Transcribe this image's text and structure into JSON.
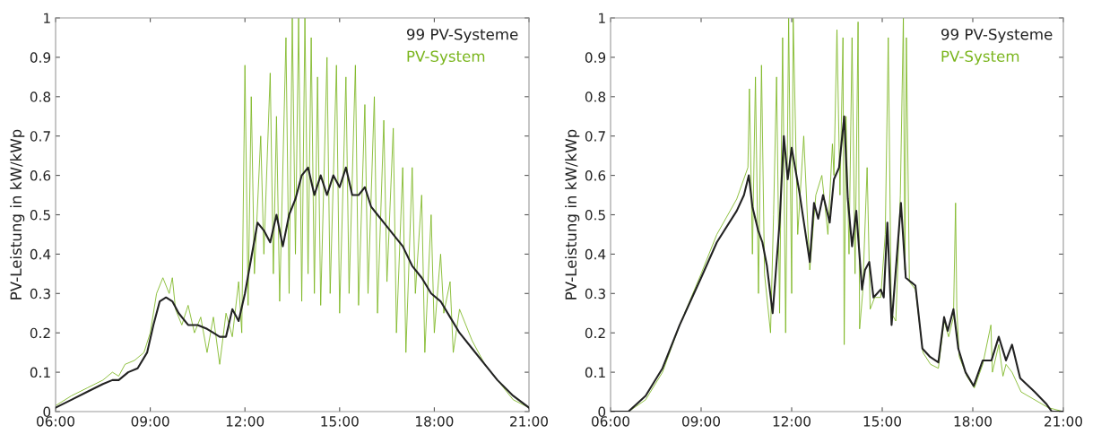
{
  "chart_data": [
    {
      "type": "line",
      "ylabel": "PV-Leistung in kW/kWp",
      "xlim": [
        6,
        21
      ],
      "ylim": [
        0,
        1
      ],
      "xticks": [
        {
          "value": 6,
          "label": "06:00"
        },
        {
          "value": 9,
          "label": "09:00"
        },
        {
          "value": 12,
          "label": "12:00"
        },
        {
          "value": 15,
          "label": "15:00"
        },
        {
          "value": 18,
          "label": "18:00"
        },
        {
          "value": 21,
          "label": "21:00"
        }
      ],
      "yticks": [
        0,
        0.1,
        0.2,
        0.3,
        0.4,
        0.5,
        0.6,
        0.7,
        0.8,
        0.9,
        1
      ],
      "grid": false,
      "legend": "top right",
      "line_style": "solid",
      "marker": "none",
      "series": [
        {
          "name": "99 PV-Systeme",
          "color": "#222222",
          "x": [
            6.0,
            6.5,
            7.0,
            7.5,
            7.8,
            8.0,
            8.3,
            8.6,
            8.9,
            9.1,
            9.3,
            9.5,
            9.7,
            9.9,
            10.2,
            10.5,
            10.8,
            11.0,
            11.2,
            11.4,
            11.6,
            11.8,
            12.0,
            12.2,
            12.4,
            12.6,
            12.8,
            13.0,
            13.2,
            13.4,
            13.6,
            13.8,
            14.0,
            14.2,
            14.4,
            14.6,
            14.8,
            15.0,
            15.2,
            15.4,
            15.6,
            15.8,
            16.0,
            16.2,
            16.5,
            16.8,
            17.0,
            17.3,
            17.6,
            17.9,
            18.2,
            18.5,
            18.8,
            19.2,
            19.6,
            20.0,
            20.5,
            21.0
          ],
          "values": [
            0.01,
            0.03,
            0.05,
            0.07,
            0.08,
            0.08,
            0.1,
            0.11,
            0.15,
            0.22,
            0.28,
            0.29,
            0.28,
            0.25,
            0.22,
            0.22,
            0.21,
            0.2,
            0.19,
            0.19,
            0.26,
            0.23,
            0.3,
            0.39,
            0.48,
            0.46,
            0.43,
            0.5,
            0.42,
            0.5,
            0.54,
            0.6,
            0.62,
            0.55,
            0.6,
            0.55,
            0.6,
            0.57,
            0.62,
            0.55,
            0.55,
            0.57,
            0.52,
            0.5,
            0.47,
            0.44,
            0.42,
            0.37,
            0.34,
            0.3,
            0.28,
            0.24,
            0.2,
            0.16,
            0.12,
            0.08,
            0.04,
            0.01
          ]
        },
        {
          "name": "PV-System",
          "color": "#7ab51d",
          "x": [
            6.0,
            6.5,
            7.0,
            7.5,
            7.8,
            8.0,
            8.2,
            8.5,
            8.8,
            9.0,
            9.2,
            9.4,
            9.6,
            9.7,
            9.8,
            10.0,
            10.2,
            10.4,
            10.6,
            10.8,
            11.0,
            11.2,
            11.4,
            11.6,
            11.8,
            11.9,
            12.0,
            12.1,
            12.2,
            12.3,
            12.5,
            12.6,
            12.8,
            12.9,
            13.0,
            13.1,
            13.3,
            13.4,
            13.5,
            13.6,
            13.7,
            13.8,
            13.9,
            14.0,
            14.1,
            14.2,
            14.3,
            14.4,
            14.6,
            14.7,
            14.9,
            15.0,
            15.2,
            15.3,
            15.5,
            15.6,
            15.8,
            15.9,
            16.1,
            16.2,
            16.4,
            16.5,
            16.7,
            16.8,
            17.0,
            17.1,
            17.3,
            17.4,
            17.6,
            17.7,
            17.9,
            18.0,
            18.2,
            18.3,
            18.5,
            18.6,
            18.8,
            19.2,
            19.6,
            20.0,
            20.5,
            21.0
          ],
          "values": [
            0.015,
            0.04,
            0.06,
            0.08,
            0.1,
            0.09,
            0.12,
            0.13,
            0.15,
            0.2,
            0.3,
            0.34,
            0.3,
            0.34,
            0.26,
            0.22,
            0.27,
            0.2,
            0.24,
            0.15,
            0.24,
            0.12,
            0.25,
            0.19,
            0.33,
            0.2,
            0.88,
            0.27,
            0.8,
            0.35,
            0.7,
            0.4,
            0.86,
            0.35,
            0.75,
            0.28,
            0.95,
            0.3,
            1.0,
            0.4,
            1.0,
            0.28,
            1.0,
            0.35,
            0.95,
            0.3,
            0.85,
            0.27,
            0.9,
            0.3,
            0.88,
            0.25,
            0.85,
            0.3,
            0.88,
            0.27,
            0.78,
            0.3,
            0.8,
            0.25,
            0.74,
            0.33,
            0.72,
            0.2,
            0.62,
            0.15,
            0.62,
            0.3,
            0.55,
            0.15,
            0.5,
            0.2,
            0.4,
            0.25,
            0.33,
            0.15,
            0.26,
            0.18,
            0.12,
            0.08,
            0.03,
            0.01
          ]
        }
      ]
    },
    {
      "type": "line",
      "ylabel": "PV-Leistung in kW/kWp",
      "xlim": [
        6,
        21
      ],
      "ylim": [
        0,
        1
      ],
      "xticks": [
        {
          "value": 6,
          "label": "06:00"
        },
        {
          "value": 9,
          "label": "09:00"
        },
        {
          "value": 12,
          "label": "12:00"
        },
        {
          "value": 15,
          "label": "15:00"
        },
        {
          "value": 18,
          "label": "18:00"
        },
        {
          "value": 21,
          "label": "21:00"
        }
      ],
      "yticks": [
        0,
        0.1,
        0.2,
        0.3,
        0.4,
        0.5,
        0.6,
        0.7,
        0.8,
        0.9,
        1
      ],
      "grid": false,
      "legend": "top right",
      "line_style": "solid",
      "marker": "none",
      "series": [
        {
          "name": "99 PV-Systeme",
          "color": "#222222",
          "x": [
            6.0,
            6.59,
            7.16,
            7.72,
            8.29,
            9.0,
            9.52,
            10.18,
            10.42,
            10.58,
            10.7,
            10.89,
            11.03,
            11.18,
            11.37,
            11.6,
            11.74,
            11.87,
            12.0,
            12.26,
            12.6,
            12.74,
            12.88,
            13.04,
            13.26,
            13.4,
            13.57,
            13.74,
            13.86,
            14.0,
            14.14,
            14.33,
            14.43,
            14.57,
            14.71,
            14.95,
            15.05,
            15.17,
            15.31,
            15.62,
            15.78,
            16.1,
            16.33,
            16.57,
            16.86,
            17.05,
            17.17,
            17.36,
            17.52,
            17.76,
            18.03,
            18.33,
            18.62,
            18.86,
            19.1,
            19.3,
            19.57,
            20.05,
            20.43,
            20.62,
            21.0
          ],
          "values": [
            0.0,
            0.0,
            0.04,
            0.11,
            0.22,
            0.34,
            0.43,
            0.51,
            0.55,
            0.6,
            0.52,
            0.46,
            0.43,
            0.37,
            0.25,
            0.48,
            0.7,
            0.59,
            0.67,
            0.555,
            0.38,
            0.53,
            0.49,
            0.55,
            0.48,
            0.59,
            0.62,
            0.75,
            0.54,
            0.42,
            0.51,
            0.31,
            0.36,
            0.38,
            0.29,
            0.31,
            0.29,
            0.48,
            0.22,
            0.53,
            0.34,
            0.32,
            0.16,
            0.14,
            0.125,
            0.24,
            0.205,
            0.26,
            0.16,
            0.1,
            0.065,
            0.13,
            0.13,
            0.19,
            0.13,
            0.17,
            0.085,
            0.05,
            0.02,
            0.0,
            0.0
          ]
        },
        {
          "name": "PV-System",
          "color": "#7ab51d",
          "x": [
            6.0,
            6.6,
            7.16,
            7.72,
            8.29,
            9.0,
            9.52,
            10.18,
            10.55,
            10.6,
            10.7,
            10.8,
            10.9,
            11.0,
            11.1,
            11.3,
            11.4,
            11.5,
            11.6,
            11.7,
            11.8,
            11.9,
            12.0,
            12.05,
            12.2,
            12.4,
            12.6,
            12.8,
            13.0,
            13.2,
            13.35,
            13.4,
            13.5,
            13.6,
            13.7,
            13.74,
            13.8,
            13.9,
            14.0,
            14.1,
            14.2,
            14.25,
            14.35,
            14.5,
            14.6,
            14.75,
            14.95,
            15.1,
            15.2,
            15.3,
            15.45,
            15.6,
            15.7,
            15.75,
            15.8,
            15.9,
            16.1,
            16.35,
            16.6,
            16.86,
            17.05,
            17.2,
            17.36,
            17.43,
            17.47,
            17.55,
            17.8,
            18.05,
            18.33,
            18.6,
            18.65,
            18.86,
            19.0,
            19.1,
            19.3,
            19.6,
            20.05,
            20.5,
            21.0
          ],
          "values": [
            0.0,
            0.0,
            0.03,
            0.1,
            0.22,
            0.35,
            0.45,
            0.54,
            0.62,
            0.82,
            0.4,
            0.85,
            0.3,
            0.88,
            0.35,
            0.2,
            0.5,
            0.85,
            0.25,
            0.95,
            0.2,
            1.0,
            0.3,
            1.0,
            0.45,
            0.7,
            0.36,
            0.55,
            0.6,
            0.45,
            0.68,
            0.6,
            0.97,
            0.55,
            0.95,
            0.17,
            0.75,
            0.4,
            0.95,
            0.35,
            0.99,
            0.21,
            0.3,
            0.62,
            0.26,
            0.29,
            0.29,
            0.45,
            0.95,
            0.25,
            0.23,
            0.55,
            1.0,
            0.36,
            0.95,
            0.33,
            0.31,
            0.15,
            0.12,
            0.11,
            0.23,
            0.19,
            0.24,
            0.53,
            0.26,
            0.14,
            0.09,
            0.06,
            0.12,
            0.22,
            0.1,
            0.17,
            0.09,
            0.12,
            0.1,
            0.05,
            0.03,
            0.01,
            0.0
          ]
        }
      ]
    }
  ]
}
